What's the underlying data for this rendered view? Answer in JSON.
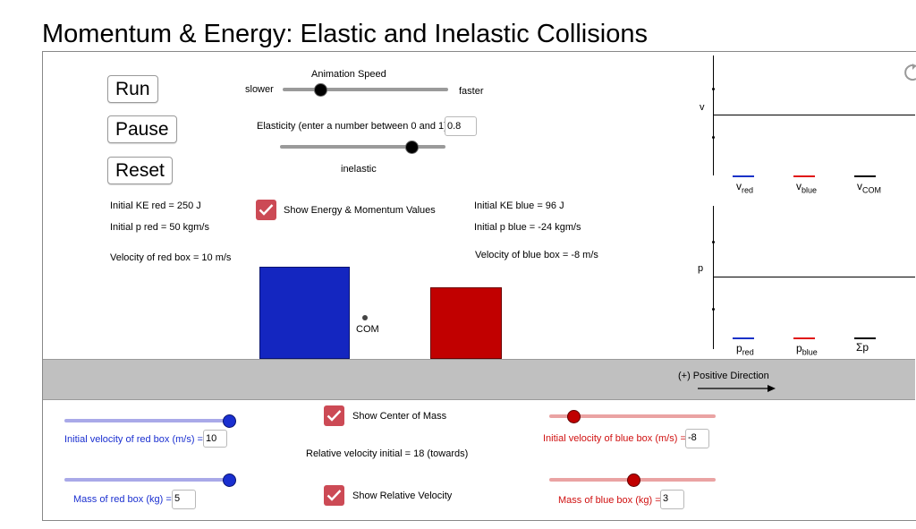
{
  "title": "Momentum & Energy: Elastic and Inelastic Collisions",
  "controls": {
    "run_label": "Run",
    "pause_label": "Pause",
    "reset_label": "Reset"
  },
  "animation_speed": {
    "label": "Animation Speed",
    "min_label": "slower",
    "max_label": "faster",
    "value_fraction": 0.23
  },
  "elasticity": {
    "label": "Elasticity (enter a number between 0 and 1)",
    "value": "0.8",
    "caption": "inelastic"
  },
  "red_info": {
    "ke": "Initial KE red = 250 J",
    "p": "Initial p red = 50 kgm/s",
    "velocity": "Velocity of red box = 10 m/s"
  },
  "blue_info": {
    "ke": "Initial KE blue = 96 J",
    "p": "Initial p blue = -24 kgm/s",
    "velocity": "Velocity of blue box = -8 m/s"
  },
  "show_values_label": "Show Energy & Momentum Values",
  "com_label": "COM",
  "direction_label": "(+) Positive Direction",
  "graph_v": {
    "axis_label": "v",
    "legend": [
      {
        "main": "v",
        "sub": "red",
        "color": "#1a32c8"
      },
      {
        "main": "v",
        "sub": "blue",
        "color": "#e01515"
      },
      {
        "main": "v",
        "sub": "COM",
        "color": "#000000"
      }
    ]
  },
  "graph_p": {
    "axis_label": "p",
    "legend": [
      {
        "main": "p",
        "sub": "red",
        "color": "#1a32c8"
      },
      {
        "main": "p",
        "sub": "blue",
        "color": "#e01515"
      },
      {
        "main": "Σp",
        "sub": "",
        "color": "#000000"
      }
    ]
  },
  "bottom": {
    "red_velocity_label": "Initial velocity of red box (m/s) =",
    "red_velocity_value": "10",
    "red_mass_label": "Mass of red box (kg) =",
    "red_mass_value": "5",
    "show_com_label": "Show Center of Mass",
    "relative_velocity_text": "Relative velocity initial = 18 (towards)",
    "show_relvel_label": "Show Relative Velocity",
    "blue_velocity_label": "Initial velocity of blue box (m/s) =",
    "blue_velocity_value": "-8",
    "blue_mass_label": "Mass of blue box (kg) =",
    "blue_mass_value": "3"
  },
  "colors": {
    "red_box": "#c10000",
    "blue_box": "#1426c0",
    "checkbox": "#cc4a55",
    "blue_text": "#1a2fd0",
    "red_text": "#d01010"
  }
}
